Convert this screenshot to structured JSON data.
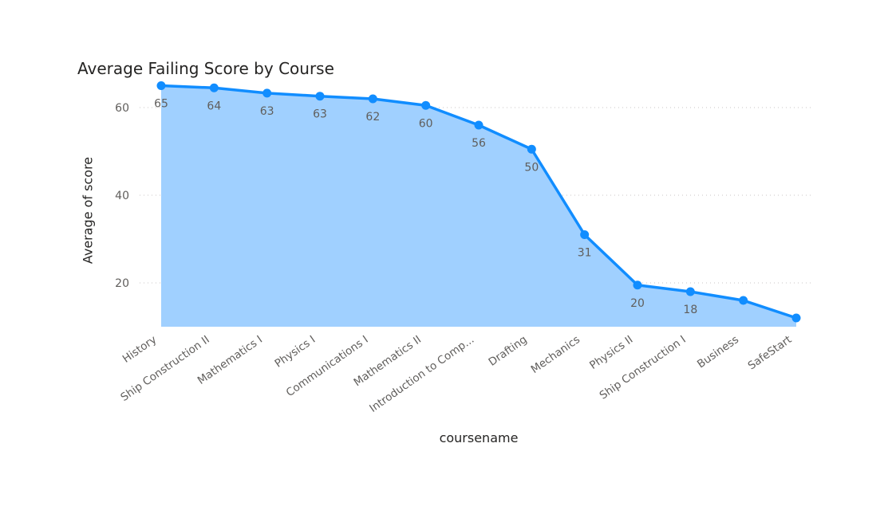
{
  "chart_data": {
    "type": "area",
    "title": "Average Failing Score by Course",
    "xlabel": "coursename",
    "ylabel": "Average of score",
    "categories": [
      "History",
      "Ship Construction II",
      "Mathematics I",
      "Physics I",
      "Communications I",
      "Mathematics II",
      "Introduction to Comp...",
      "Drafting",
      "Mechanics",
      "Physics II",
      "Ship Construction I",
      "Business",
      "SafeStart"
    ],
    "values": [
      65,
      64.5,
      63.3,
      62.6,
      62,
      60.5,
      56,
      50.5,
      31,
      19.5,
      18,
      16,
      12
    ],
    "data_labels": [
      "65",
      "64",
      "63",
      "63",
      "62",
      "60",
      "56",
      "50",
      "31",
      "20",
      "18",
      "",
      ""
    ],
    "yticks": [
      20,
      40,
      60
    ],
    "ylim": [
      10,
      70
    ],
    "grid": "horizontal-dotted",
    "line_color": "#118dff",
    "fill_color": "#a0d0ff",
    "legend": "none"
  }
}
